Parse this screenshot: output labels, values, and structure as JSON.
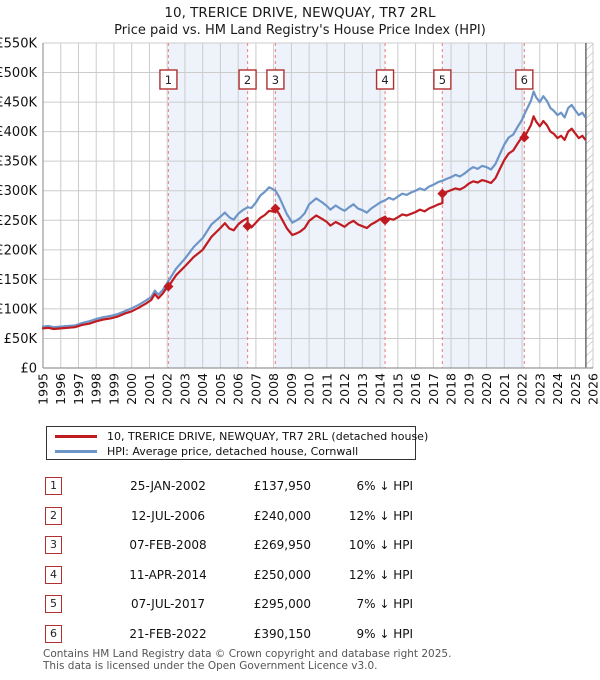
{
  "title": "10, TRERICE DRIVE, NEWQUAY, TR7 2RL",
  "subtitle": "Price paid vs. HM Land Registry's House Price Index (HPI)",
  "legend": {
    "property": "10, TRERICE DRIVE, NEWQUAY, TR7 2RL (detached house)",
    "hpi": "HPI: Average price, detached house, Cornwall"
  },
  "chart_data": {
    "type": "line",
    "x_range": [
      1995,
      2026
    ],
    "y_range_thousands": [
      0,
      550
    ],
    "y_tick_step_thousands": 50,
    "y_tick_labels": [
      "£0",
      "£50K",
      "£100K",
      "£150K",
      "£200K",
      "£250K",
      "£300K",
      "£350K",
      "£400K",
      "£450K",
      "£500K",
      "£550K"
    ],
    "x_tick_years": [
      1995,
      1996,
      1997,
      1998,
      1999,
      2000,
      2001,
      2002,
      2003,
      2004,
      2005,
      2006,
      2007,
      2008,
      2009,
      2010,
      2011,
      2012,
      2013,
      2014,
      2015,
      2016,
      2017,
      2018,
      2019,
      2020,
      2021,
      2022,
      2023,
      2024,
      2025,
      2026
    ],
    "grid": true,
    "legend_position": "below",
    "future_hatch_start_year": 2025.6,
    "colors": {
      "property_line": "#c11b22",
      "hpi_line": "#6d95c8",
      "sale_dashed_line": "#f08f8f",
      "marker_box_border": "#b03030",
      "ownership_band_fill": "#edf2fb",
      "gridline": "#cccccc",
      "axis_spine": "#999999"
    },
    "series": [
      {
        "name": "10, TRERICE DRIVE, NEWQUAY, TR7 2RL (detached house)",
        "color": "#c11b22",
        "unit": "GBP thousands",
        "points": [
          [
            1995.0,
            67
          ],
          [
            1995.3,
            68
          ],
          [
            1995.6,
            66
          ],
          [
            1996.0,
            67
          ],
          [
            1996.4,
            68
          ],
          [
            1996.8,
            69
          ],
          [
            1997.2,
            73
          ],
          [
            1997.6,
            75
          ],
          [
            1998.0,
            79
          ],
          [
            1998.4,
            82
          ],
          [
            1998.8,
            84
          ],
          [
            1999.2,
            87
          ],
          [
            1999.6,
            92
          ],
          [
            2000.0,
            96
          ],
          [
            2000.4,
            102
          ],
          [
            2000.8,
            109
          ],
          [
            2001.1,
            115
          ],
          [
            2001.3,
            125
          ],
          [
            2001.5,
            118
          ],
          [
            2001.75,
            126
          ],
          [
            2002.07,
            140
          ],
          [
            2002.07,
            138
          ],
          [
            2002.5,
            157
          ],
          [
            2003.0,
            172
          ],
          [
            2003.5,
            188
          ],
          [
            2004.0,
            200
          ],
          [
            2004.5,
            222
          ],
          [
            2005.0,
            237
          ],
          [
            2005.25,
            245
          ],
          [
            2005.5,
            236
          ],
          [
            2005.75,
            233
          ],
          [
            2006.0,
            243
          ],
          [
            2006.25,
            249
          ],
          [
            2006.53,
            254
          ],
          [
            2006.53,
            240
          ],
          [
            2006.75,
            238
          ],
          [
            2007.0,
            246
          ],
          [
            2007.25,
            254
          ],
          [
            2007.5,
            259
          ],
          [
            2007.75,
            266
          ],
          [
            2008.1,
            264
          ],
          [
            2008.1,
            270
          ],
          [
            2008.3,
            261
          ],
          [
            2008.5,
            250
          ],
          [
            2008.75,
            236
          ],
          [
            2009.05,
            225
          ],
          [
            2009.3,
            228
          ],
          [
            2009.5,
            231
          ],
          [
            2009.75,
            237
          ],
          [
            2010.0,
            249
          ],
          [
            2010.4,
            258
          ],
          [
            2010.75,
            252
          ],
          [
            2011.0,
            247
          ],
          [
            2011.2,
            241
          ],
          [
            2011.5,
            247
          ],
          [
            2011.75,
            243
          ],
          [
            2012.0,
            239
          ],
          [
            2012.25,
            245
          ],
          [
            2012.5,
            249
          ],
          [
            2012.75,
            243
          ],
          [
            2013.0,
            240
          ],
          [
            2013.25,
            237
          ],
          [
            2013.5,
            243
          ],
          [
            2013.75,
            247
          ],
          [
            2014.0,
            252
          ],
          [
            2014.28,
            256
          ],
          [
            2014.28,
            250
          ],
          [
            2014.5,
            253
          ],
          [
            2014.75,
            251
          ],
          [
            2015.0,
            255
          ],
          [
            2015.25,
            260
          ],
          [
            2015.5,
            258
          ],
          [
            2015.75,
            261
          ],
          [
            2016.0,
            264
          ],
          [
            2016.25,
            268
          ],
          [
            2016.5,
            265
          ],
          [
            2016.75,
            270
          ],
          [
            2017.0,
            273
          ],
          [
            2017.3,
            277
          ],
          [
            2017.51,
            279
          ],
          [
            2017.51,
            295
          ],
          [
            2017.75,
            298
          ],
          [
            2018.0,
            301
          ],
          [
            2018.25,
            304
          ],
          [
            2018.5,
            302
          ],
          [
            2018.75,
            306
          ],
          [
            2019.0,
            312
          ],
          [
            2019.25,
            316
          ],
          [
            2019.5,
            314
          ],
          [
            2019.75,
            318
          ],
          [
            2020.0,
            316
          ],
          [
            2020.25,
            313
          ],
          [
            2020.5,
            321
          ],
          [
            2020.75,
            337
          ],
          [
            2021.0,
            352
          ],
          [
            2021.25,
            363
          ],
          [
            2021.5,
            368
          ],
          [
            2021.75,
            380
          ],
          [
            2022.0,
            391
          ],
          [
            2022.13,
            399
          ],
          [
            2022.13,
            390
          ],
          [
            2022.3,
            400
          ],
          [
            2022.5,
            411
          ],
          [
            2022.65,
            426
          ],
          [
            2022.8,
            417
          ],
          [
            2023.0,
            409
          ],
          [
            2023.2,
            418
          ],
          [
            2023.4,
            411
          ],
          [
            2023.6,
            400
          ],
          [
            2023.8,
            396
          ],
          [
            2024.0,
            389
          ],
          [
            2024.2,
            393
          ],
          [
            2024.4,
            386
          ],
          [
            2024.6,
            400
          ],
          [
            2024.8,
            405
          ],
          [
            2025.0,
            397
          ],
          [
            2025.2,
            389
          ],
          [
            2025.4,
            393
          ],
          [
            2025.55,
            387
          ]
        ]
      },
      {
        "name": "HPI: Average price, detached house, Cornwall",
        "color": "#6d95c8",
        "unit": "GBP thousands",
        "points": [
          [
            1995.0,
            70
          ],
          [
            1995.3,
            71
          ],
          [
            1995.6,
            69
          ],
          [
            1996.0,
            70
          ],
          [
            1996.4,
            71
          ],
          [
            1996.8,
            72
          ],
          [
            1997.2,
            76
          ],
          [
            1997.6,
            79
          ],
          [
            1998.0,
            83
          ],
          [
            1998.4,
            86
          ],
          [
            1998.8,
            88
          ],
          [
            1999.2,
            91
          ],
          [
            1999.6,
            96
          ],
          [
            2000.0,
            101
          ],
          [
            2000.4,
            107
          ],
          [
            2000.8,
            114
          ],
          [
            2001.1,
            120
          ],
          [
            2001.3,
            131
          ],
          [
            2001.5,
            124
          ],
          [
            2001.75,
            132
          ],
          [
            2002.07,
            147
          ],
          [
            2002.5,
            168
          ],
          [
            2003.0,
            185
          ],
          [
            2003.5,
            205
          ],
          [
            2004.0,
            220
          ],
          [
            2004.5,
            243
          ],
          [
            2005.0,
            256
          ],
          [
            2005.25,
            263
          ],
          [
            2005.5,
            255
          ],
          [
            2005.75,
            251
          ],
          [
            2006.0,
            261
          ],
          [
            2006.25,
            267
          ],
          [
            2006.53,
            272
          ],
          [
            2006.75,
            271
          ],
          [
            2007.0,
            280
          ],
          [
            2007.25,
            292
          ],
          [
            2007.5,
            298
          ],
          [
            2007.75,
            306
          ],
          [
            2008.1,
            300
          ],
          [
            2008.3,
            290
          ],
          [
            2008.5,
            277
          ],
          [
            2008.75,
            260
          ],
          [
            2009.05,
            246
          ],
          [
            2009.3,
            250
          ],
          [
            2009.5,
            254
          ],
          [
            2009.75,
            262
          ],
          [
            2010.0,
            277
          ],
          [
            2010.4,
            287
          ],
          [
            2010.75,
            280
          ],
          [
            2011.0,
            274
          ],
          [
            2011.2,
            268
          ],
          [
            2011.5,
            275
          ],
          [
            2011.75,
            270
          ],
          [
            2012.0,
            266
          ],
          [
            2012.25,
            272
          ],
          [
            2012.5,
            277
          ],
          [
            2012.75,
            270
          ],
          [
            2013.0,
            267
          ],
          [
            2013.25,
            263
          ],
          [
            2013.5,
            270
          ],
          [
            2013.75,
            275
          ],
          [
            2014.0,
            280
          ],
          [
            2014.28,
            284
          ],
          [
            2014.5,
            288
          ],
          [
            2014.75,
            285
          ],
          [
            2015.0,
            290
          ],
          [
            2015.25,
            295
          ],
          [
            2015.5,
            293
          ],
          [
            2015.75,
            297
          ],
          [
            2016.0,
            300
          ],
          [
            2016.25,
            304
          ],
          [
            2016.5,
            301
          ],
          [
            2016.75,
            307
          ],
          [
            2017.0,
            310
          ],
          [
            2017.3,
            315
          ],
          [
            2017.51,
            317
          ],
          [
            2017.75,
            320
          ],
          [
            2018.0,
            323
          ],
          [
            2018.25,
            327
          ],
          [
            2018.5,
            324
          ],
          [
            2018.75,
            329
          ],
          [
            2019.0,
            335
          ],
          [
            2019.25,
            340
          ],
          [
            2019.5,
            337
          ],
          [
            2019.75,
            342
          ],
          [
            2020.0,
            340
          ],
          [
            2020.25,
            336
          ],
          [
            2020.5,
            345
          ],
          [
            2020.75,
            362
          ],
          [
            2021.0,
            378
          ],
          [
            2021.25,
            390
          ],
          [
            2021.5,
            395
          ],
          [
            2021.75,
            408
          ],
          [
            2022.0,
            420
          ],
          [
            2022.13,
            429
          ],
          [
            2022.3,
            440
          ],
          [
            2022.5,
            452
          ],
          [
            2022.65,
            468
          ],
          [
            2022.8,
            458
          ],
          [
            2023.0,
            450
          ],
          [
            2023.2,
            460
          ],
          [
            2023.4,
            452
          ],
          [
            2023.6,
            440
          ],
          [
            2023.8,
            435
          ],
          [
            2024.0,
            428
          ],
          [
            2024.2,
            432
          ],
          [
            2024.4,
            424
          ],
          [
            2024.6,
            440
          ],
          [
            2024.8,
            445
          ],
          [
            2025.0,
            436
          ],
          [
            2025.2,
            428
          ],
          [
            2025.4,
            432
          ],
          [
            2025.55,
            425
          ]
        ]
      }
    ],
    "sales": [
      {
        "num": "1",
        "year": 2002.07,
        "price_thousands": 137.95
      },
      {
        "num": "2",
        "year": 2006.53,
        "price_thousands": 240.0
      },
      {
        "num": "3",
        "year": 2008.1,
        "price_thousands": 269.95
      },
      {
        "num": "4",
        "year": 2014.28,
        "price_thousands": 250.0
      },
      {
        "num": "5",
        "year": 2017.51,
        "price_thousands": 295.0
      },
      {
        "num": "6",
        "year": 2022.13,
        "price_thousands": 390.15
      }
    ]
  },
  "sales_table": {
    "rows": [
      {
        "num": "1",
        "date": "25-JAN-2002",
        "price": "£137,950",
        "hpi_diff": "6% ↓ HPI"
      },
      {
        "num": "2",
        "date": "12-JUL-2006",
        "price": "£240,000",
        "hpi_diff": "12% ↓ HPI"
      },
      {
        "num": "3",
        "date": "07-FEB-2008",
        "price": "£269,950",
        "hpi_diff": "10% ↓ HPI"
      },
      {
        "num": "4",
        "date": "11-APR-2014",
        "price": "£250,000",
        "hpi_diff": "12% ↓ HPI"
      },
      {
        "num": "5",
        "date": "07-JUL-2017",
        "price": "£295,000",
        "hpi_diff": "7% ↓ HPI"
      },
      {
        "num": "6",
        "date": "21-FEB-2022",
        "price": "£390,150",
        "hpi_diff": "9% ↓ HPI"
      }
    ]
  },
  "footer": {
    "line1": "Contains HM Land Registry data © Crown copyright and database right 2025.",
    "line2": "This data is licensed under the Open Government Licence v3.0."
  }
}
